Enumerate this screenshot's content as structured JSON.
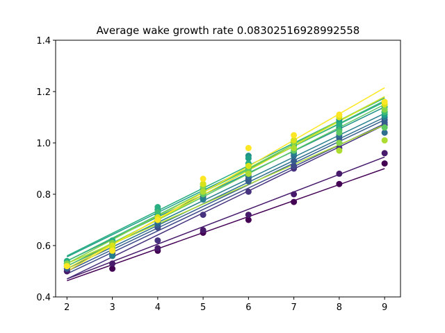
{
  "chart_data": {
    "type": "scatter",
    "title": "Average wake growth rate 0.08302516928992558",
    "xlabel": "",
    "ylabel": "",
    "xlim": [
      1.75,
      9.35
    ],
    "ylim": [
      0.4,
      1.4
    ],
    "x": [
      2,
      3,
      4,
      5,
      6,
      7,
      8,
      9
    ],
    "xticks": [
      "2",
      "3",
      "4",
      "5",
      "6",
      "7",
      "8",
      "9"
    ],
    "yticks": [
      "0.4",
      "0.6",
      "0.8",
      "1.0",
      "1.2",
      "1.4"
    ],
    "grid": false,
    "colormap": "viridis",
    "series": [
      {
        "color": "#440154",
        "values": [
          0.5,
          0.51,
          0.58,
          0.65,
          0.7,
          0.77,
          0.84,
          0.92
        ],
        "fit": [
          0.463,
          0.9
        ]
      },
      {
        "color": "#481a6c",
        "values": [
          0.5,
          0.53,
          0.59,
          0.66,
          0.72,
          0.8,
          0.88,
          0.96
        ],
        "fit": [
          0.47,
          0.945
        ]
      },
      {
        "color": "#46327e",
        "values": [
          0.51,
          0.56,
          0.62,
          0.72,
          0.81,
          0.9,
          0.98,
          1.07
        ],
        "fit": [
          0.47,
          1.07
        ]
      },
      {
        "color": "#3e4989",
        "values": [
          0.52,
          0.57,
          0.67,
          0.78,
          0.86,
          0.91,
          1.0,
          1.09
        ],
        "fit": [
          0.49,
          1.075
        ]
      },
      {
        "color": "#365c8d",
        "values": [
          0.51,
          0.57,
          0.68,
          0.79,
          0.85,
          0.93,
          1.02,
          1.08
        ],
        "fit": [
          0.5,
          1.09
        ]
      },
      {
        "color": "#2e6e8e",
        "values": [
          0.52,
          0.58,
          0.69,
          0.8,
          0.87,
          0.95,
          1.03,
          1.04
        ],
        "fit": [
          0.51,
          1.1
        ]
      },
      {
        "color": "#277f8e",
        "values": [
          0.52,
          0.56,
          0.7,
          0.78,
          0.88,
          0.96,
          1.06,
          1.1
        ],
        "fit": [
          0.52,
          1.115
        ]
      },
      {
        "color": "#21918c",
        "values": [
          0.53,
          0.59,
          0.72,
          0.82,
          0.95,
          1.0,
          1.09,
          1.12
        ],
        "fit": [
          0.54,
          1.14
        ]
      },
      {
        "color": "#1fa188",
        "values": [
          0.53,
          0.6,
          0.74,
          0.84,
          0.94,
          1.01,
          1.08,
          1.11
        ],
        "fit": [
          0.556,
          1.16
        ]
      },
      {
        "color": "#28ae80",
        "values": [
          0.54,
          0.62,
          0.75,
          0.83,
          0.92,
          0.99,
          1.07,
          1.14
        ],
        "fit": [
          0.56,
          1.175
        ]
      },
      {
        "color": "#3fbc73",
        "values": [
          0.53,
          0.61,
          0.73,
          0.82,
          0.9,
          0.98,
          1.05,
          1.12
        ],
        "fit": [
          0.54,
          1.165
        ]
      },
      {
        "color": "#5ec962",
        "values": [
          0.52,
          0.6,
          0.7,
          0.8,
          0.89,
          0.97,
          1.04,
          1.06
        ],
        "fit": [
          0.52,
          1.15
        ]
      },
      {
        "color": "#84d44b",
        "values": [
          0.53,
          0.61,
          0.71,
          0.83,
          0.91,
          1.0,
          1.0,
          1.13
        ],
        "fit": [
          0.53,
          1.18
        ]
      },
      {
        "color": "#addc30",
        "values": [
          0.52,
          0.59,
          0.7,
          0.81,
          0.88,
          0.98,
          0.97,
          1.01
        ],
        "fit": [
          0.53,
          1.07
        ]
      },
      {
        "color": "#d8e219",
        "values": [
          0.52,
          0.6,
          0.71,
          0.84,
          0.91,
          1.01,
          1.1,
          1.15
        ],
        "fit": [
          0.51,
          1.18
        ]
      },
      {
        "color": "#fde725",
        "values": [
          0.52,
          0.58,
          0.7,
          0.86,
          0.98,
          1.03,
          1.11,
          1.16
        ],
        "fit": [
          0.5,
          1.215
        ]
      }
    ]
  }
}
